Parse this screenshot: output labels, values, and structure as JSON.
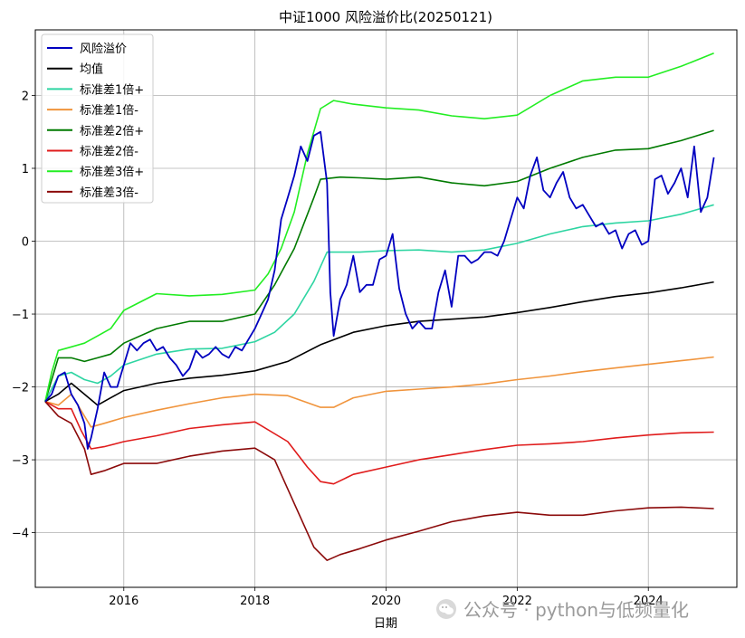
{
  "chart_data": {
    "type": "line",
    "title": "中证1000 风险溢价比(20250121)",
    "xlabel": "日期",
    "ylabel": "",
    "xlim": [
      2014.65,
      2025.35
    ],
    "ylim": [
      -4.75,
      2.9
    ],
    "grid": true,
    "legend_position": "top-left",
    "x_ticks": [
      2016,
      2018,
      2020,
      2022,
      2024
    ],
    "x_tick_labels": [
      "2016",
      "2018",
      "2020",
      "2022",
      "2024"
    ],
    "y_ticks": [
      2,
      1,
      0,
      -1,
      -2,
      -3,
      -4
    ],
    "y_tick_labels": [
      "2",
      "1",
      "0",
      "−1",
      "−2",
      "−3",
      "−4"
    ],
    "series": [
      {
        "name": "风险溢价",
        "color": "#0000c0",
        "x": [
          2014.8,
          2014.9,
          2015.0,
          2015.1,
          2015.2,
          2015.3,
          2015.4,
          2015.45,
          2015.5,
          2015.6,
          2015.7,
          2015.8,
          2015.9,
          2016.0,
          2016.1,
          2016.2,
          2016.3,
          2016.4,
          2016.5,
          2016.6,
          2016.7,
          2016.8,
          2016.9,
          2017.0,
          2017.1,
          2017.2,
          2017.3,
          2017.4,
          2017.5,
          2017.6,
          2017.7,
          2017.8,
          2017.9,
          2018.0,
          2018.1,
          2018.2,
          2018.3,
          2018.4,
          2018.5,
          2018.6,
          2018.7,
          2018.8,
          2018.9,
          2019.0,
          2019.1,
          2019.15,
          2019.2,
          2019.3,
          2019.4,
          2019.5,
          2019.6,
          2019.7,
          2019.8,
          2019.9,
          2020.0,
          2020.1,
          2020.2,
          2020.3,
          2020.4,
          2020.5,
          2020.6,
          2020.7,
          2020.8,
          2020.9,
          2021.0,
          2021.1,
          2021.2,
          2021.3,
          2021.4,
          2021.5,
          2021.6,
          2021.7,
          2021.8,
          2021.9,
          2022.0,
          2022.1,
          2022.2,
          2022.3,
          2022.4,
          2022.5,
          2022.6,
          2022.7,
          2022.8,
          2022.9,
          2023.0,
          2023.1,
          2023.2,
          2023.3,
          2023.4,
          2023.5,
          2023.6,
          2023.7,
          2023.8,
          2023.9,
          2024.0,
          2024.1,
          2024.2,
          2024.3,
          2024.4,
          2024.5,
          2024.6,
          2024.7,
          2024.8,
          2024.9,
          2025.0
        ],
        "y": [
          -2.2,
          -2.1,
          -1.85,
          -1.8,
          -2.1,
          -2.25,
          -2.5,
          -2.85,
          -2.7,
          -2.3,
          -1.8,
          -2.0,
          -2.0,
          -1.7,
          -1.4,
          -1.5,
          -1.4,
          -1.35,
          -1.5,
          -1.45,
          -1.6,
          -1.7,
          -1.85,
          -1.75,
          -1.5,
          -1.6,
          -1.55,
          -1.45,
          -1.55,
          -1.6,
          -1.45,
          -1.5,
          -1.35,
          -1.2,
          -1.0,
          -0.8,
          -0.4,
          0.3,
          0.6,
          0.9,
          1.3,
          1.1,
          1.45,
          1.5,
          0.8,
          -0.7,
          -1.3,
          -0.8,
          -0.6,
          -0.2,
          -0.7,
          -0.6,
          -0.6,
          -0.25,
          -0.2,
          0.1,
          -0.65,
          -1.0,
          -1.2,
          -1.1,
          -1.2,
          -1.2,
          -0.7,
          -0.4,
          -0.9,
          -0.2,
          -0.2,
          -0.3,
          -0.25,
          -0.15,
          -0.15,
          -0.2,
          0.0,
          0.3,
          0.6,
          0.45,
          0.9,
          1.15,
          0.7,
          0.6,
          0.8,
          0.95,
          0.6,
          0.45,
          0.5,
          0.35,
          0.2,
          0.25,
          0.1,
          0.15,
          -0.1,
          0.1,
          0.15,
          -0.05,
          0.0,
          0.85,
          0.9,
          0.65,
          0.8,
          1.0,
          0.6,
          1.3,
          0.4,
          0.6,
          1.15
        ]
      },
      {
        "name": "均值",
        "color": "#000000",
        "x": [
          2014.8,
          2015.0,
          2015.2,
          2015.4,
          2015.6,
          2015.8,
          2016.0,
          2016.5,
          2017.0,
          2017.5,
          2018.0,
          2018.5,
          2019.0,
          2019.5,
          2020.0,
          2020.5,
          2021.0,
          2021.5,
          2022.0,
          2022.5,
          2023.0,
          2023.5,
          2024.0,
          2024.5,
          2025.0
        ],
        "y": [
          -2.2,
          -2.1,
          -1.95,
          -2.1,
          -2.25,
          -2.15,
          -2.05,
          -1.95,
          -1.88,
          -1.84,
          -1.78,
          -1.65,
          -1.42,
          -1.25,
          -1.16,
          -1.1,
          -1.07,
          -1.04,
          -0.98,
          -0.91,
          -0.83,
          -0.76,
          -0.71,
          -0.64,
          -0.56
        ]
      },
      {
        "name": "标准差1倍+",
        "color": "#2ed5a2",
        "x": [
          2014.8,
          2015.0,
          2015.2,
          2015.4,
          2015.6,
          2015.8,
          2016.0,
          2016.5,
          2017.0,
          2017.5,
          2018.0,
          2018.3,
          2018.6,
          2018.9,
          2019.1,
          2019.3,
          2019.6,
          2020.0,
          2020.5,
          2021.0,
          2021.5,
          2022.0,
          2022.5,
          2023.0,
          2023.5,
          2024.0,
          2024.5,
          2025.0
        ],
        "y": [
          -2.2,
          -1.85,
          -1.8,
          -1.9,
          -1.95,
          -1.85,
          -1.7,
          -1.55,
          -1.48,
          -1.47,
          -1.38,
          -1.25,
          -1.0,
          -0.55,
          -0.15,
          -0.15,
          -0.15,
          -0.13,
          -0.12,
          -0.15,
          -0.12,
          -0.03,
          0.1,
          0.2,
          0.25,
          0.28,
          0.37,
          0.5
        ]
      },
      {
        "name": "标准差1倍-",
        "color": "#f0943c",
        "x": [
          2014.8,
          2015.0,
          2015.2,
          2015.4,
          2015.5,
          2015.7,
          2016.0,
          2016.5,
          2017.0,
          2017.5,
          2018.0,
          2018.5,
          2019.0,
          2019.2,
          2019.5,
          2020.0,
          2020.5,
          2021.0,
          2021.5,
          2022.0,
          2022.5,
          2023.0,
          2023.5,
          2024.0,
          2024.5,
          2025.0
        ],
        "y": [
          -2.2,
          -2.25,
          -2.1,
          -2.4,
          -2.55,
          -2.5,
          -2.42,
          -2.32,
          -2.23,
          -2.15,
          -2.1,
          -2.12,
          -2.28,
          -2.28,
          -2.15,
          -2.06,
          -2.03,
          -2.0,
          -1.96,
          -1.9,
          -1.85,
          -1.79,
          -1.74,
          -1.69,
          -1.64,
          -1.59
        ]
      },
      {
        "name": "标准差2倍+",
        "color": "#007a00",
        "x": [
          2014.8,
          2015.0,
          2015.2,
          2015.4,
          2015.6,
          2015.8,
          2016.0,
          2016.5,
          2017.0,
          2017.5,
          2018.0,
          2018.3,
          2018.6,
          2018.9,
          2019.0,
          2019.3,
          2019.6,
          2020.0,
          2020.5,
          2021.0,
          2021.5,
          2022.0,
          2022.5,
          2023.0,
          2023.5,
          2024.0,
          2024.5,
          2025.0
        ],
        "y": [
          -2.2,
          -1.6,
          -1.6,
          -1.65,
          -1.6,
          -1.55,
          -1.4,
          -1.2,
          -1.1,
          -1.1,
          -1.0,
          -0.6,
          -0.1,
          0.6,
          0.85,
          0.88,
          0.87,
          0.85,
          0.88,
          0.8,
          0.76,
          0.82,
          1.0,
          1.15,
          1.25,
          1.27,
          1.38,
          1.52
        ]
      },
      {
        "name": "标准差2倍-",
        "color": "#e01c1c",
        "x": [
          2014.8,
          2015.0,
          2015.2,
          2015.35,
          2015.5,
          2015.7,
          2016.0,
          2016.5,
          2017.0,
          2017.5,
          2018.0,
          2018.5,
          2018.8,
          2019.0,
          2019.2,
          2019.5,
          2020.0,
          2020.5,
          2021.0,
          2021.5,
          2022.0,
          2022.5,
          2023.0,
          2023.5,
          2024.0,
          2024.5,
          2025.0
        ],
        "y": [
          -2.2,
          -2.3,
          -2.3,
          -2.6,
          -2.85,
          -2.82,
          -2.75,
          -2.67,
          -2.57,
          -2.52,
          -2.48,
          -2.75,
          -3.1,
          -3.3,
          -3.33,
          -3.2,
          -3.1,
          -3.0,
          -2.93,
          -2.86,
          -2.8,
          -2.78,
          -2.75,
          -2.7,
          -2.66,
          -2.63,
          -2.62
        ]
      },
      {
        "name": "标准差3倍+",
        "color": "#22ee22",
        "x": [
          2014.8,
          2014.9,
          2015.0,
          2015.2,
          2015.4,
          2015.6,
          2015.8,
          2016.0,
          2016.5,
          2017.0,
          2017.5,
          2018.0,
          2018.2,
          2018.4,
          2018.6,
          2018.8,
          2019.0,
          2019.2,
          2019.5,
          2020.0,
          2020.5,
          2021.0,
          2021.5,
          2022.0,
          2022.5,
          2023.0,
          2023.5,
          2024.0,
          2024.5,
          2025.0
        ],
        "y": [
          -2.2,
          -1.8,
          -1.5,
          -1.45,
          -1.4,
          -1.3,
          -1.2,
          -0.95,
          -0.72,
          -0.75,
          -0.73,
          -0.67,
          -0.45,
          -0.1,
          0.4,
          1.2,
          1.82,
          1.93,
          1.88,
          1.83,
          1.8,
          1.72,
          1.68,
          1.73,
          2.0,
          2.2,
          2.25,
          2.25,
          2.4,
          2.58
        ]
      },
      {
        "name": "标准差3倍-",
        "color": "#8b0a0a",
        "x": [
          2014.8,
          2015.0,
          2015.2,
          2015.4,
          2015.5,
          2015.7,
          2016.0,
          2016.5,
          2017.0,
          2017.5,
          2018.0,
          2018.3,
          2018.6,
          2018.9,
          2019.1,
          2019.3,
          2019.6,
          2020.0,
          2020.5,
          2021.0,
          2021.5,
          2022.0,
          2022.5,
          2023.0,
          2023.5,
          2024.0,
          2024.5,
          2025.0
        ],
        "y": [
          -2.2,
          -2.4,
          -2.5,
          -2.85,
          -3.2,
          -3.15,
          -3.05,
          -3.05,
          -2.95,
          -2.88,
          -2.84,
          -3.0,
          -3.6,
          -4.2,
          -4.38,
          -4.3,
          -4.22,
          -4.1,
          -3.98,
          -3.85,
          -3.77,
          -3.72,
          -3.76,
          -3.76,
          -3.7,
          -3.66,
          -3.65,
          -3.67
        ]
      }
    ]
  },
  "watermark": {
    "text": "公众号 · python与低频量化",
    "icon": "wechat-icon"
  }
}
